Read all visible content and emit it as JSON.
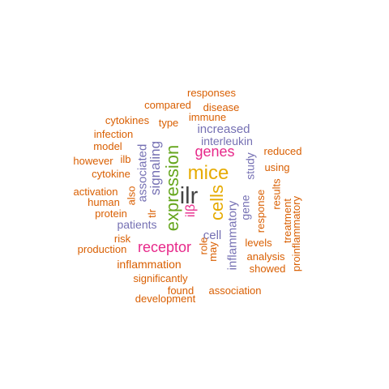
{
  "palette": {
    "orange": "#d95f02",
    "purple": "#7570b3",
    "magenta": "#e7298a",
    "green": "#66a61e",
    "gold": "#e6ab02",
    "dark": "#444444"
  },
  "words": [
    {
      "text": "ilr",
      "color": "dark",
      "rotated": false
    },
    {
      "text": "mice",
      "color": "gold",
      "rotated": false
    },
    {
      "text": "expression",
      "color": "green",
      "rotated": true
    },
    {
      "text": "cells",
      "color": "gold",
      "rotated": true
    },
    {
      "text": "receptor",
      "color": "magenta",
      "rotated": false
    },
    {
      "text": "genes",
      "color": "magenta",
      "rotated": false
    },
    {
      "text": "signaling",
      "color": "purple",
      "rotated": true
    },
    {
      "text": "associated",
      "color": "purple",
      "rotated": true
    },
    {
      "text": "increased",
      "color": "purple",
      "rotated": false
    },
    {
      "text": "interleukin",
      "color": "purple",
      "rotated": false
    },
    {
      "text": "inflammatory",
      "color": "purple",
      "rotated": true
    },
    {
      "text": "patients",
      "color": "purple",
      "rotated": false
    },
    {
      "text": "inflammation",
      "color": "orange",
      "rotated": false
    },
    {
      "text": "ilβ",
      "color": "magenta",
      "rotated": true
    },
    {
      "text": "cell",
      "color": "purple",
      "rotated": false
    },
    {
      "text": "gene",
      "color": "purple",
      "rotated": true
    },
    {
      "text": "study",
      "color": "purple",
      "rotated": true
    },
    {
      "text": "response",
      "color": "orange",
      "rotated": true
    },
    {
      "text": "immune",
      "color": "orange",
      "rotated": false
    },
    {
      "text": "disease",
      "color": "orange",
      "rotated": false
    },
    {
      "text": "compared",
      "color": "orange",
      "rotated": false
    },
    {
      "text": "responses",
      "color": "orange",
      "rotated": false
    },
    {
      "text": "type",
      "color": "orange",
      "rotated": false
    },
    {
      "text": "cytokines",
      "color": "orange",
      "rotated": false
    },
    {
      "text": "infection",
      "color": "orange",
      "rotated": false
    },
    {
      "text": "model",
      "color": "orange",
      "rotated": false
    },
    {
      "text": "however",
      "color": "orange",
      "rotated": false
    },
    {
      "text": "ilb",
      "color": "orange",
      "rotated": false
    },
    {
      "text": "cytokine",
      "color": "orange",
      "rotated": false
    },
    {
      "text": "activation",
      "color": "orange",
      "rotated": false
    },
    {
      "text": "human",
      "color": "orange",
      "rotated": false
    },
    {
      "text": "protein",
      "color": "orange",
      "rotated": false
    },
    {
      "text": "also",
      "color": "orange",
      "rotated": true
    },
    {
      "text": "tlr",
      "color": "orange",
      "rotated": true
    },
    {
      "text": "risk",
      "color": "orange",
      "rotated": false
    },
    {
      "text": "production",
      "color": "orange",
      "rotated": false
    },
    {
      "text": "role",
      "color": "orange",
      "rotated": true
    },
    {
      "text": "may",
      "color": "orange",
      "rotated": true
    },
    {
      "text": "significantly",
      "color": "orange",
      "rotated": false
    },
    {
      "text": "found",
      "color": "orange",
      "rotated": false
    },
    {
      "text": "development",
      "color": "orange",
      "rotated": false
    },
    {
      "text": "association",
      "color": "orange",
      "rotated": false
    },
    {
      "text": "levels",
      "color": "orange",
      "rotated": false
    },
    {
      "text": "analysis",
      "color": "orange",
      "rotated": false
    },
    {
      "text": "showed",
      "color": "orange",
      "rotated": false
    },
    {
      "text": "reduced",
      "color": "orange",
      "rotated": false
    },
    {
      "text": "using",
      "color": "orange",
      "rotated": false
    },
    {
      "text": "results",
      "color": "orange",
      "rotated": true
    },
    {
      "text": "treatment",
      "color": "orange",
      "rotated": true
    },
    {
      "text": "proinflammatory",
      "color": "orange",
      "rotated": true
    }
  ]
}
